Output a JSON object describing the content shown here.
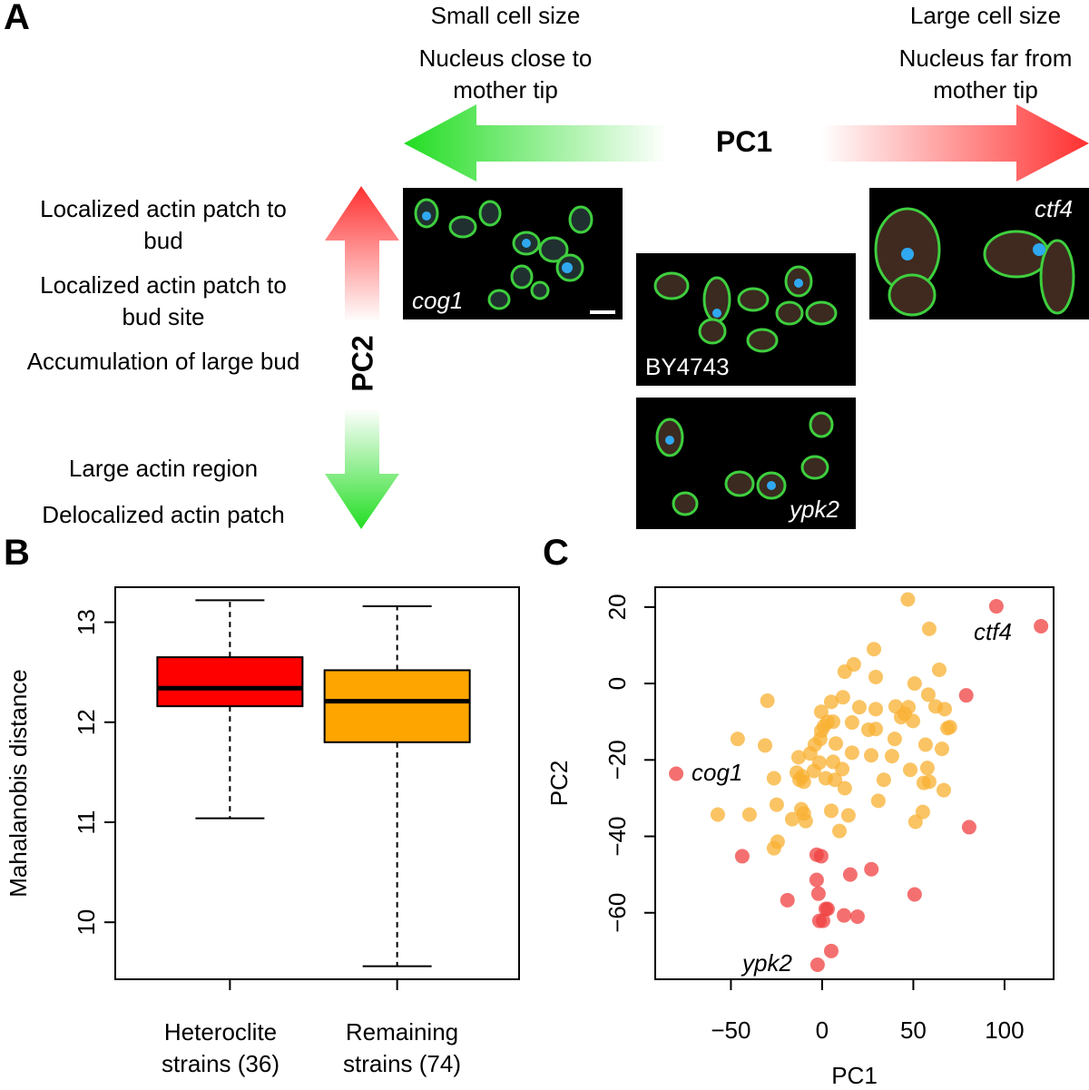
{
  "panel_a": {
    "panel_label": "A",
    "pc1_label": "PC1",
    "pc2_label": "PC2",
    "left_texts": [
      "Small cell size",
      "Nucleus close to mother tip"
    ],
    "right_texts": [
      "Large cell size",
      "Nucleus far from mother tip"
    ],
    "pc2_up_texts": [
      "Localized actin patch to bud",
      "Localized actin patch to bud site",
      "Accumulation of large bud"
    ],
    "pc2_down_texts": [
      "Large actin region",
      "Delocalized actin patch"
    ],
    "images": [
      "cog1",
      "BY4743",
      "ctf4",
      "ypk2"
    ]
  },
  "chart_data": [
    {
      "type": "box",
      "panel_label": "B",
      "ylabel": "Mahalanobis distance",
      "categories": [
        "Heteroclite strains (36)",
        "Remaining strains (74)"
      ],
      "boxes": [
        {
          "min": 11.04,
          "q1": 12.16,
          "median": 12.34,
          "q3": 12.65,
          "max": 13.22,
          "color": "#ff0000"
        },
        {
          "min": 9.56,
          "q1": 11.8,
          "median": 12.21,
          "q3": 12.52,
          "max": 13.16,
          "color": "#ffa500"
        }
      ],
      "ylim": [
        9.43,
        13.35
      ],
      "yticks": [
        10,
        11,
        12,
        13
      ]
    },
    {
      "type": "scatter",
      "panel_label": "C",
      "xlabel": "PC1",
      "ylabel": "PC2",
      "annotations": [
        "cog1",
        "ctf4",
        "ypk2"
      ],
      "xlim": [
        -91.5,
        126.9
      ],
      "ylim": [
        -77.4,
        25.2
      ],
      "xticks": [
        {
          "value": -50,
          "label": "−50"
        },
        0,
        50,
        100
      ],
      "yticks": [
        {
          "value": -60,
          "label": "−60"
        },
        {
          "value": -40,
          "label": "−40"
        },
        {
          "value": -20,
          "label": "−20"
        },
        0,
        20
      ],
      "series": [
        {
          "color": "#f8b030",
          "x": [
            47,
            -30,
            -46.3,
            -57.2,
            -39.8,
            -26.4,
            -26.4,
            -24.9,
            -31.3,
            -11.4,
            -10,
            -13.9,
            -12.4,
            -10,
            -10.9,
            -12.9,
            -6.5,
            -4,
            -1,
            -0.5,
            1,
            3,
            -0.5,
            6,
            7.5,
            6,
            -1.5,
            -4.5,
            2,
            7,
            11,
            12.4,
            16.4,
            16.4,
            11.4,
            17.4,
            12.4,
            20.4,
            25.4,
            29.4,
            26.9,
            30.8,
            33.8,
            38.3,
            39.8,
            43.3,
            40.3,
            45.3,
            47.3,
            50.7,
            49.8,
            56.7,
            57.7,
            48.3,
            55.7,
            58.7,
            62.2,
            65.7,
            66.7,
            68.7,
            70.1,
            67.2,
            55.2,
            51.2,
            14.4,
            5,
            9.5,
            -16.4,
            -9,
            -24.4,
            5,
            58.2,
            64.2,
            29.4,
            29.4,
            58.7,
            28.4
          ],
          "y": [
            22,
            -4.5,
            -14.5,
            -34.3,
            -34.3,
            -43.1,
            -24.8,
            -31.7,
            -16.2,
            -32.9,
            -34,
            -23.3,
            -25.2,
            -25.7,
            -24.3,
            -19.3,
            -18.3,
            -16,
            -14.5,
            -12.4,
            -11.2,
            -10,
            -7.4,
            -10,
            -15.7,
            -20.5,
            -20.7,
            -22.9,
            -24.8,
            -25.2,
            -22.4,
            -27.4,
            -18.1,
            -10.2,
            -3.6,
            5,
            3.1,
            -6.2,
            -12.1,
            -11.9,
            -18.8,
            -30.7,
            -25.2,
            -19,
            -14.5,
            -8.8,
            -6,
            -7.9,
            -6.2,
            0,
            -9.8,
            -16,
            -22.1,
            -22.6,
            -26,
            -25.7,
            -6,
            -17.1,
            -27.9,
            -11.7,
            -11.4,
            -6.7,
            -33.6,
            -36.2,
            -34.5,
            -33.3,
            -38.6,
            -35.5,
            -36,
            -41.4,
            -4.8,
            -2.9,
            3.6,
            -6.7,
            1.7,
            14.3,
            9
          ]
        },
        {
          "color": "#f04040",
          "x": [
            -80,
            95.5,
            120,
            79,
            80.6,
            -43.8,
            -3,
            -0.5,
            -19,
            -3,
            -2,
            2,
            0.5,
            -1.5,
            12,
            19.4,
            15.4,
            27,
            50.7,
            5,
            -2.5,
            3
          ],
          "y": [
            -23.6,
            20.2,
            15,
            -3.1,
            -37.6,
            -45.2,
            -44.8,
            -45.2,
            -56.7,
            -51.4,
            -55,
            -59,
            -62.1,
            -62.1,
            -60.7,
            -61,
            -50,
            -48.6,
            -55.2,
            -70,
            -73.6,
            -59
          ]
        }
      ]
    }
  ]
}
